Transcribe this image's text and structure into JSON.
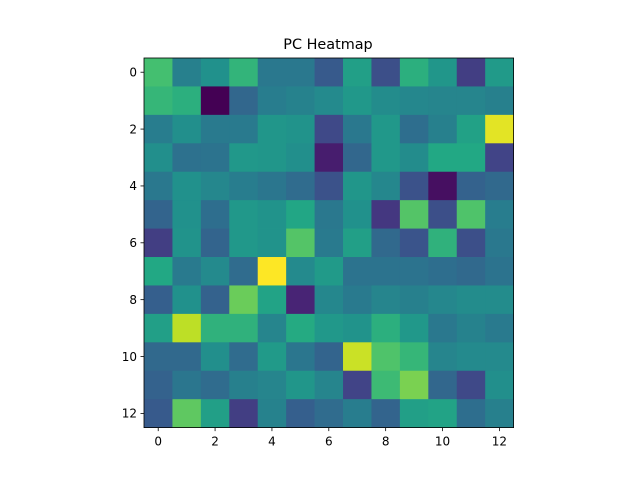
{
  "chart_data": {
    "type": "heatmap",
    "title": "PC Heatmap",
    "xlabel": "",
    "ylabel": "",
    "colormap": "viridis",
    "grid": false,
    "x_ticks": [
      "0",
      "2",
      "4",
      "6",
      "8",
      "10",
      "12"
    ],
    "y_ticks": [
      "0",
      "2",
      "4",
      "6",
      "8",
      "10",
      "12"
    ],
    "xlim": [
      -0.5,
      12.5
    ],
    "ylim": [
      12.5,
      -0.5
    ],
    "color_range": [
      0,
      1
    ],
    "values": [
      [
        0.7,
        0.43,
        0.5,
        0.65,
        0.4,
        0.4,
        0.28,
        0.56,
        0.24,
        0.63,
        0.52,
        0.18,
        0.54
      ],
      [
        0.66,
        0.63,
        0.0,
        0.33,
        0.42,
        0.44,
        0.47,
        0.53,
        0.48,
        0.46,
        0.45,
        0.45,
        0.43
      ],
      [
        0.42,
        0.49,
        0.41,
        0.41,
        0.52,
        0.51,
        0.22,
        0.4,
        0.53,
        0.36,
        0.43,
        0.57,
        0.96
      ],
      [
        0.49,
        0.37,
        0.38,
        0.53,
        0.52,
        0.49,
        0.08,
        0.33,
        0.53,
        0.48,
        0.6,
        0.6,
        0.2
      ],
      [
        0.4,
        0.5,
        0.46,
        0.42,
        0.39,
        0.35,
        0.25,
        0.52,
        0.46,
        0.25,
        0.04,
        0.31,
        0.34
      ],
      [
        0.32,
        0.5,
        0.36,
        0.53,
        0.51,
        0.59,
        0.4,
        0.5,
        0.16,
        0.73,
        0.24,
        0.72,
        0.42
      ],
      [
        0.18,
        0.51,
        0.32,
        0.53,
        0.51,
        0.73,
        0.41,
        0.56,
        0.34,
        0.26,
        0.64,
        0.24,
        0.4
      ],
      [
        0.6,
        0.41,
        0.47,
        0.35,
        1.0,
        0.47,
        0.54,
        0.38,
        0.38,
        0.38,
        0.36,
        0.34,
        0.38
      ],
      [
        0.3,
        0.5,
        0.31,
        0.77,
        0.58,
        0.1,
        0.46,
        0.41,
        0.45,
        0.43,
        0.46,
        0.48,
        0.48
      ],
      [
        0.56,
        0.9,
        0.64,
        0.64,
        0.45,
        0.61,
        0.53,
        0.51,
        0.63,
        0.53,
        0.4,
        0.44,
        0.41
      ],
      [
        0.34,
        0.34,
        0.49,
        0.35,
        0.54,
        0.39,
        0.32,
        0.92,
        0.72,
        0.66,
        0.45,
        0.47,
        0.47
      ],
      [
        0.31,
        0.39,
        0.35,
        0.43,
        0.45,
        0.52,
        0.45,
        0.2,
        0.68,
        0.8,
        0.33,
        0.22,
        0.49
      ],
      [
        0.28,
        0.75,
        0.56,
        0.18,
        0.44,
        0.3,
        0.35,
        0.42,
        0.32,
        0.56,
        0.58,
        0.36,
        0.43
      ]
    ]
  }
}
